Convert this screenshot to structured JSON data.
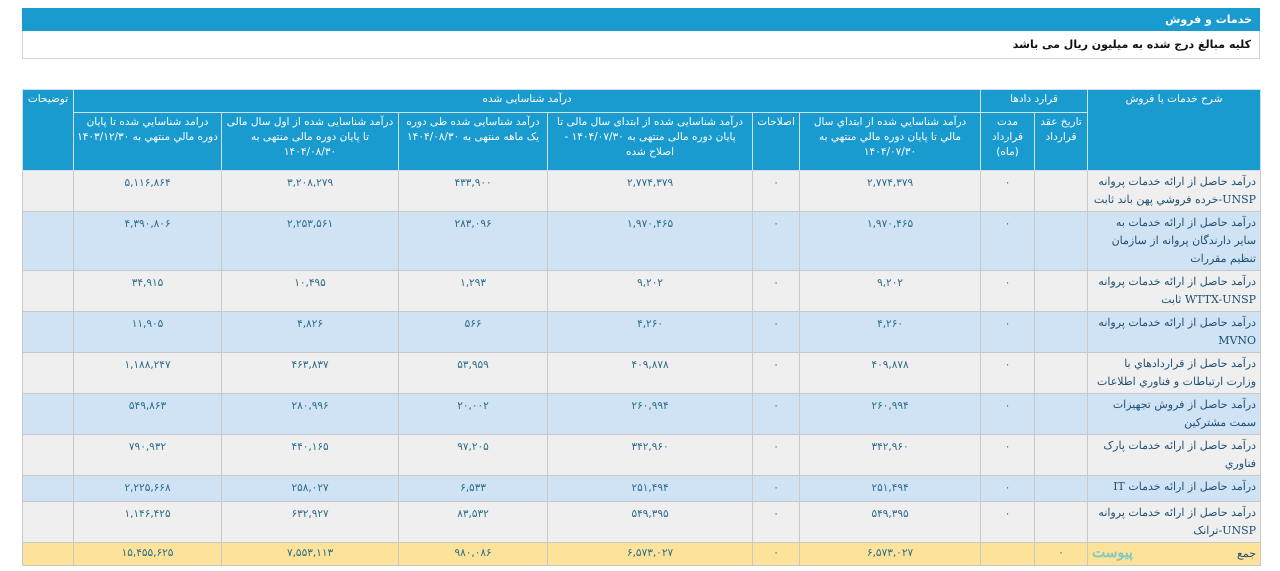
{
  "title": "خدمات و فروش",
  "subtitle": "کلیه مبالغ درج شده به میلیون ریال می باشد",
  "header": {
    "description": "شرح خدمات یا فروش",
    "contracts": "قرارد دادها",
    "contract_date": "تاریخ عقد قرارداد",
    "contract_duration": "مدت قرارداد (ماه)",
    "recognized_group": "درآمد شناسایی شده",
    "col_ytd_0730": "درآمد شناسايي شده از ابتداي سال مالي تا پايان دوره مالي منتهي به ۱۴۰۴/۰۷/۳۰",
    "col_adjustments": "اصلاحات",
    "col_ytd_adjusted": "درآمد شناسایی شده از ابتدای سال مالی تا پایان دوره مالی منتهی به ۱۴۰۴/۰۷/۳۰ - اصلاح شده",
    "col_month": "درآمد شناسایی شده طی دوره یک ماهه منتهی به ۱۴۰۴/۰۸/۳۰",
    "col_ytd_0830": "درآمد شناسایی شده از اول سال مالی تا پایان دوره مالی منتهی به ۱۴۰۴/۰۸/۳۰",
    "col_prev_year": "درامد شناسايي شده تا پايان دوره مالي منتهي به ۱۴۰۳/۱۲/۳۰",
    "notes": "توضیحات"
  },
  "rows": [
    {
      "desc": "درآمد حاصل از ارائه خدمات پروانه UNSP-خرده فروشي پهن باند ثابت",
      "date": "",
      "duration": "۰",
      "ytd0730": "۲,۷۷۴,۳۷۹",
      "adj": "۰",
      "adjusted": "۲,۷۷۴,۳۷۹",
      "month": "۴۳۳,۹۰۰",
      "ytd0830": "۳,۲۰۸,۲۷۹",
      "prev": "۵,۱۱۶,۸۶۴",
      "notes": ""
    },
    {
      "desc": "درآمد حاصل از ارائه خدمات به سایر دارندگان پروانه از سازمان تنظیم مقررات",
      "date": "",
      "duration": "۰",
      "ytd0730": "۱,۹۷۰,۴۶۵",
      "adj": "۰",
      "adjusted": "۱,۹۷۰,۴۶۵",
      "month": "۲۸۳,۰۹۶",
      "ytd0830": "۲,۲۵۳,۵۶۱",
      "prev": "۴,۳۹۰,۸۰۶",
      "notes": ""
    },
    {
      "desc": "درآمد حاصل از ارائه خدمات پروانه WTTX-UNSP ثابت",
      "date": "",
      "duration": "۰",
      "ytd0730": "۹,۲۰۲",
      "adj": "۰",
      "adjusted": "۹,۲۰۲",
      "month": "۱,۲۹۳",
      "ytd0830": "۱۰,۴۹۵",
      "prev": "۳۴,۹۱۵",
      "notes": ""
    },
    {
      "desc": "درآمد حاصل از ارائه خدمات پروانه MVNO",
      "date": "",
      "duration": "۰",
      "ytd0730": "۴,۲۶۰",
      "adj": "۰",
      "adjusted": "۴,۲۶۰",
      "month": "۵۶۶",
      "ytd0830": "۴,۸۲۶",
      "prev": "۱۱,۹۰۵",
      "notes": ""
    },
    {
      "desc": "درآمد حاصل از قراردادهاي با وزارت ارتباطات و فناوري اطلاعات",
      "date": "",
      "duration": "۰",
      "ytd0730": "۴۰۹,۸۷۸",
      "adj": "۰",
      "adjusted": "۴۰۹,۸۷۸",
      "month": "۵۳,۹۵۹",
      "ytd0830": "۴۶۳,۸۳۷",
      "prev": "۱,۱۸۸,۲۴۷",
      "notes": ""
    },
    {
      "desc": "درآمد حاصل از فروش تجهیزات سمت مشترکین",
      "date": "",
      "duration": "۰",
      "ytd0730": "۲۶۰,۹۹۴",
      "adj": "۰",
      "adjusted": "۲۶۰,۹۹۴",
      "month": "۲۰,۰۰۲",
      "ytd0830": "۲۸۰,۹۹۶",
      "prev": "۵۴۹,۸۶۳",
      "notes": ""
    },
    {
      "desc": "درآمد حاصل از ارائه خدمات پارک فناوري",
      "date": "",
      "duration": "۰",
      "ytd0730": "۳۴۲,۹۶۰",
      "adj": "۰",
      "adjusted": "۳۴۲,۹۶۰",
      "month": "۹۷,۲۰۵",
      "ytd0830": "۴۴۰,۱۶۵",
      "prev": "۷۹۰,۹۳۲",
      "notes": ""
    },
    {
      "desc": "درآمد حاصل از ارائه خدمات IT",
      "date": "",
      "duration": "۰",
      "ytd0730": "۲۵۱,۴۹۴",
      "adj": "۰",
      "adjusted": "۲۵۱,۴۹۴",
      "month": "۶,۵۳۳",
      "ytd0830": "۲۵۸,۰۲۷",
      "prev": "۲,۲۲۵,۶۶۸",
      "notes": ""
    },
    {
      "desc": "درآمد حاصل از ارائه خدمات پروانه UNSP-ترانک",
      "date": "",
      "duration": "۰",
      "ytd0730": "۵۴۹,۳۹۵",
      "adj": "۰",
      "adjusted": "۵۴۹,۳۹۵",
      "month": "۸۳,۵۳۲",
      "ytd0830": "۶۳۲,۹۲۷",
      "prev": "۱,۱۴۶,۴۲۵",
      "notes": ""
    }
  ],
  "total": {
    "desc": "جمع",
    "date": "۰",
    "duration": "",
    "ytd0730": "۶,۵۷۳,۰۲۷",
    "adj": "۰",
    "adjusted": "۶,۵۷۳,۰۲۷",
    "month": "۹۸۰,۰۸۶",
    "ytd0830": "۷,۵۵۳,۱۱۳",
    "prev": "۱۵,۴۵۵,۶۲۵",
    "notes": ""
  },
  "watermark": "پیوست",
  "colors": {
    "header": "#1a9bd0",
    "row_odd": "#efefef",
    "row_even": "#cfe3f5",
    "total": "#fde29a",
    "value_text": "#2b6c8c"
  }
}
